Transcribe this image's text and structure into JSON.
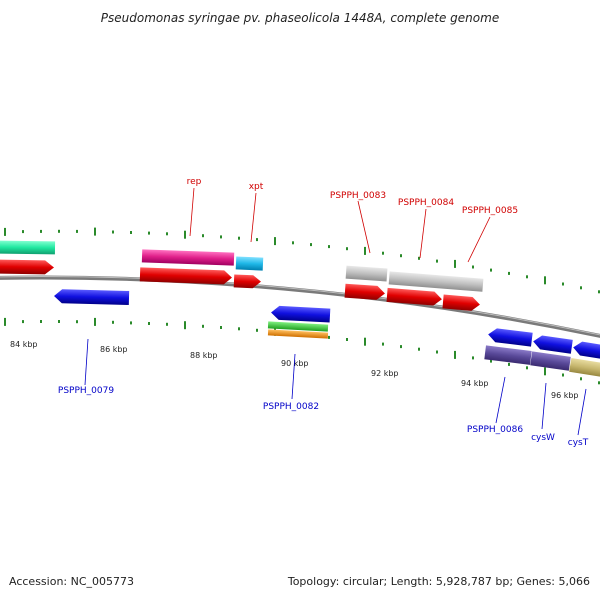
{
  "title": "Pseudomonas syringae pv. phaseolicola 1448A, complete genome",
  "footer": {
    "accession": "Accession: NC_005773",
    "summary": "Topology: circular; Length: 5,928,787 bp; Genes: 5,066"
  },
  "kbp_labels": [
    {
      "text": "84 kbp"
    },
    {
      "text": "86 kbp"
    },
    {
      "text": "88 kbp"
    },
    {
      "text": "90 kbp"
    },
    {
      "text": "92 kbp"
    },
    {
      "text": "94 kbp"
    },
    {
      "text": "96 kbp"
    }
  ],
  "gene_labels_top": [
    {
      "text": "rep",
      "color": "#d00000"
    },
    {
      "text": "xpt",
      "color": "#d00000"
    },
    {
      "text": "PSPPH_0083",
      "color": "#d00000"
    },
    {
      "text": "PSPPH_0084",
      "color": "#d00000"
    },
    {
      "text": "PSPPH_0085",
      "color": "#d00000"
    }
  ],
  "gene_labels_bottom": [
    {
      "text": "PSPPH_0079",
      "color": "#0000c8"
    },
    {
      "text": "PSPPH_0082",
      "color": "#0000c8"
    },
    {
      "text": "PSPPH_0086",
      "color": "#0000c8"
    },
    {
      "text": "cysW",
      "color": "#0000c8"
    },
    {
      "text": "cysT",
      "color": "#0000c8"
    }
  ],
  "colors": {
    "backbone": "#8a8a8a",
    "tick": "#2a8a2a",
    "forward_cds": "#e00000",
    "reverse_cds": "#1010e0",
    "rna_pink": "#e0208a",
    "rna_cyan": "#20b8e8",
    "grey_feature": "#c0c0c0",
    "green_feature": "#20e8a0",
    "purple_feature": "#5a4a9a",
    "khaki_feature": "#c8b870"
  }
}
